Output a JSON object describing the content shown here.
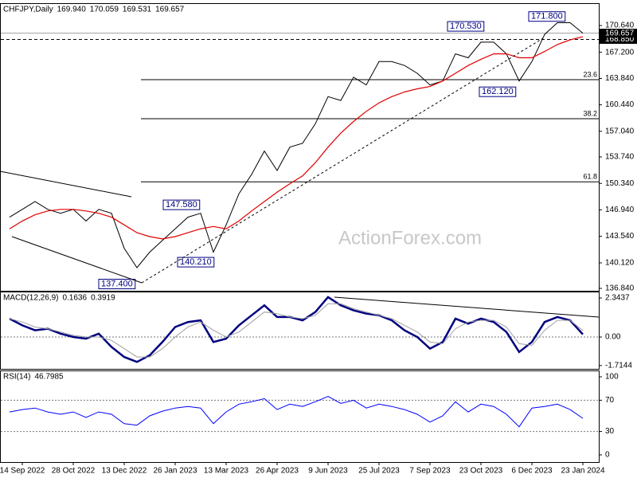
{
  "chart_data": [
    {
      "type": "line",
      "title": "CHFJPY,Daily",
      "ohlc": [
        "169.940",
        "170.059",
        "169.531",
        "169.657"
      ],
      "watermark": "ActionForex.com",
      "ylim": [
        136.53,
        173.41
      ],
      "yticks": [
        {
          "value": 170.64,
          "label": "170.640"
        },
        {
          "value": 167.2,
          "label": "167.200"
        },
        {
          "value": 163.84,
          "label": "163.840"
        },
        {
          "value": 160.44,
          "label": "160.440"
        },
        {
          "value": 157.04,
          "label": "157.040"
        },
        {
          "value": 153.74,
          "label": "153.740"
        },
        {
          "value": 150.34,
          "label": "150.340"
        },
        {
          "value": 146.94,
          "label": "146.940"
        },
        {
          "value": 143.54,
          "label": "143.540"
        },
        {
          "value": 140.12,
          "label": "140.120"
        },
        {
          "value": 136.84,
          "label": "136.840"
        }
      ],
      "current_price": {
        "value": 169.657,
        "label": "169.657"
      },
      "reference_price": {
        "value": 168.85,
        "label": "168.850"
      },
      "fib": [
        {
          "value": 163.68,
          "label": "23.6"
        },
        {
          "value": 158.66,
          "label": "38.2"
        },
        {
          "value": 150.54,
          "label": "61.8"
        }
      ],
      "annotations": [
        {
          "value": 171.8,
          "label": "171.800"
        },
        {
          "value": 170.53,
          "label": "170.530"
        },
        {
          "value": 162.12,
          "label": "162.120"
        },
        {
          "value": 147.58,
          "label": "147.580"
        },
        {
          "value": 140.21,
          "label": "140.210"
        },
        {
          "value": 137.4,
          "label": "137.400"
        }
      ],
      "series": [
        {
          "color": "#000000",
          "values": [
            146,
            147,
            148,
            147,
            146.5,
            147,
            145.5,
            147,
            146.5,
            142,
            139.5,
            141.5,
            143,
            144.5,
            146,
            146.5,
            141.5,
            145,
            149,
            151.5,
            154.5,
            152,
            155,
            155.5,
            158,
            161.5,
            161,
            164,
            163,
            166,
            166,
            165.5,
            164.5,
            163,
            163.5,
            167,
            166.5,
            168.5,
            168.5,
            167,
            163.5,
            166,
            169.5,
            171,
            171,
            169.66
          ]
        },
        {
          "color": "#e00000",
          "values": [
            144.5,
            145.5,
            146.3,
            146.8,
            147,
            147,
            146.8,
            146.5,
            146,
            145,
            144,
            143.5,
            143.2,
            143.5,
            144,
            144.5,
            144.8,
            144.5,
            145.5,
            146.8,
            148,
            149.2,
            150.3,
            151.3,
            153,
            155,
            156.8,
            158.3,
            159.6,
            160.7,
            161.5,
            162.1,
            162.5,
            162.8,
            163.5,
            164.5,
            165.5,
            166.3,
            167,
            167,
            166.5,
            166.5,
            167.3,
            168.2,
            168.8,
            169.2
          ]
        }
      ]
    },
    {
      "type": "line",
      "title": "MACD(12,26,9)",
      "readings": [
        0.1636,
        0.3919
      ],
      "ylim": [
        -1.914,
        2.68
      ],
      "yticks": [
        2.3437,
        {
          "value": 0,
          "label": "0.00"
        },
        -1.7144
      ],
      "series": [
        {
          "color": "#000080",
          "values": [
            1.1,
            0.7,
            0.4,
            0.5,
            0.2,
            0,
            -0.1,
            0.2,
            -0.6,
            -1.2,
            -1.5,
            -1.1,
            -0.3,
            0.6,
            0.9,
            1.0,
            -0.3,
            -0.1,
            0.7,
            1.3,
            1.9,
            1.2,
            1.2,
            1.0,
            1.5,
            2.4,
            1.9,
            1.6,
            1.4,
            1.3,
            1.0,
            0.4,
            0.0,
            -0.7,
            -0.3,
            1.1,
            0.8,
            1.1,
            0.9,
            0.3,
            -0.9,
            -0.3,
            0.9,
            1.2,
            1.0,
            0.16
          ]
        },
        {
          "color": "#a0a0a0",
          "values": [
            1.1,
            0.9,
            0.6,
            0.5,
            0.3,
            0.1,
            0,
            0,
            -0.2,
            -0.7,
            -1.2,
            -1.2,
            -0.7,
            0,
            0.6,
            0.9,
            0.4,
            0,
            0.3,
            0.9,
            1.5,
            1.4,
            1.2,
            1.1,
            1.3,
            2.0,
            2.0,
            1.7,
            1.5,
            1.3,
            1.1,
            0.7,
            0.3,
            -0.3,
            -0.4,
            0.5,
            0.9,
            1.0,
            1.0,
            0.6,
            -0.4,
            -0.5,
            0.4,
            1.0,
            1.0,
            0.39
          ]
        }
      ]
    },
    {
      "type": "line",
      "title": "RSI(14)",
      "readings": [
        46.7985
      ],
      "ylim": [
        -9.2,
        107.1
      ],
      "yticks": [
        100,
        70,
        30,
        0
      ],
      "levels": [
        70,
        30
      ],
      "categories": [
        null,
        "14 Sep 2022",
        null,
        null,
        null,
        "28 Oct 2022",
        null,
        null,
        null,
        "13 Dec 2022",
        null,
        null,
        null,
        "26 Jan 2023",
        null,
        null,
        null,
        "13 Mar 2023",
        null,
        null,
        null,
        "26 Apr 2023",
        null,
        null,
        null,
        "9 Jun 2023",
        null,
        null,
        null,
        "25 Jul 2023",
        null,
        null,
        null,
        "7 Sep 2023",
        null,
        null,
        null,
        "23 Oct 2023",
        null,
        null,
        null,
        "6 Dec 2023",
        null,
        null,
        null,
        "23 Jan 2024"
      ],
      "series": [
        {
          "color": "#0000ff",
          "values": [
            55,
            58,
            60,
            55,
            52,
            55,
            48,
            55,
            52,
            40,
            38,
            50,
            56,
            60,
            62,
            60,
            40,
            55,
            65,
            68,
            72,
            58,
            65,
            62,
            68,
            75,
            66,
            70,
            60,
            65,
            62,
            58,
            52,
            42,
            50,
            68,
            55,
            65,
            62,
            52,
            36,
            60,
            62,
            65,
            58,
            46.8
          ]
        }
      ]
    }
  ]
}
